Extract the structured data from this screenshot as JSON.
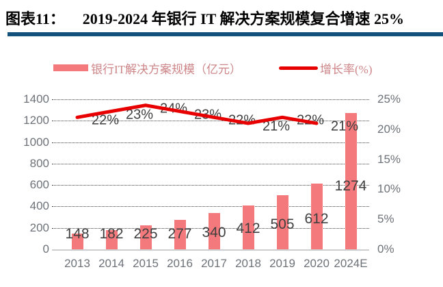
{
  "figure": {
    "caption_label": "图表11：",
    "caption_title": "2019-2024 年银行 IT 解决方案规模复合增速 25%"
  },
  "colors": {
    "divider": "#14527E",
    "bar": "#F4797C",
    "line": "#E80000",
    "legend_text": "#CD8588",
    "axis_text": "#6C7278",
    "data_label_text": "#3F3F3F",
    "background": "#FFFFFF"
  },
  "legend": {
    "items": [
      {
        "label": "银行IT解决方案规模（亿元）",
        "swatch": "bar"
      },
      {
        "label": "增长率(%)",
        "swatch": "line"
      }
    ]
  },
  "chart_data": {
    "type": "bar",
    "subtype": "combo bar+line, dual y-axis",
    "categories": [
      "2013",
      "2014",
      "2015",
      "2016",
      "2017",
      "2018",
      "2019",
      "2020",
      "2024E"
    ],
    "series": [
      {
        "name": "银行IT解决方案规模（亿元）",
        "type": "bar",
        "axis": "left",
        "color": "#F4797C",
        "values": [
          148,
          182,
          225,
          277,
          340,
          412,
          505,
          612,
          1274
        ],
        "labels": [
          "148",
          "182",
          "225",
          "277",
          "340",
          "412",
          "505",
          "612",
          "1274"
        ]
      },
      {
        "name": "增长率(%)",
        "type": "line",
        "axis": "right",
        "color": "#E80000",
        "categories": [
          "2013",
          "2014",
          "2015",
          "2016",
          "2017",
          "2018",
          "2019",
          "2020"
        ],
        "values": [
          22,
          23,
          24,
          23,
          22,
          21,
          22,
          21
        ],
        "labels": [
          "22%",
          "23%",
          "24%",
          "23%",
          "22%",
          "21%",
          "22%",
          "21%"
        ]
      }
    ],
    "left_axis": {
      "min": 0,
      "max": 1400,
      "step": 200,
      "tick_values": [
        0,
        200,
        400,
        600,
        800,
        1000,
        1200,
        1400
      ],
      "ticks": [
        "0",
        "200",
        "400",
        "600",
        "800",
        "1000",
        "1200",
        "1400"
      ]
    },
    "right_axis": {
      "min": 0,
      "max": 25,
      "step": 5,
      "tick_values": [
        0,
        5,
        10,
        15,
        20,
        25
      ],
      "ticks": [
        "0%",
        "5%",
        "10%",
        "15%",
        "20%",
        "25%"
      ]
    },
    "grid": "horizontal dotted",
    "legend_position": "top"
  }
}
